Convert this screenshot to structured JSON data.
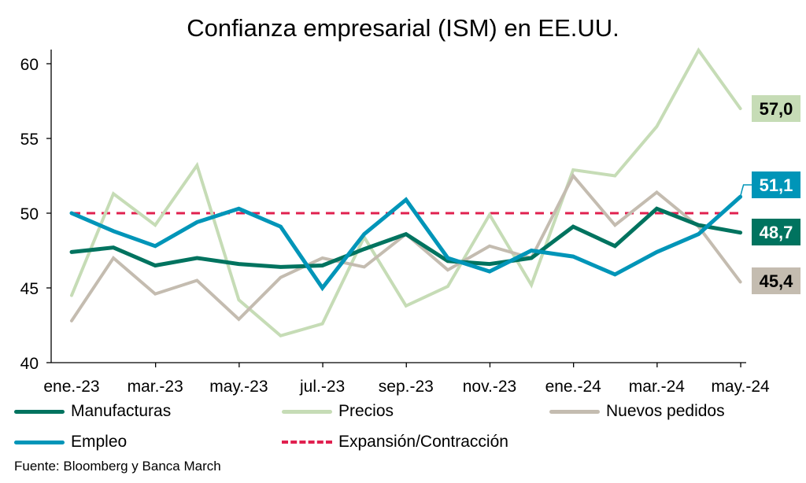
{
  "chart_data": {
    "type": "line",
    "title": "Confianza empresarial (ISM) en EE.UU.",
    "xlabel": "",
    "ylabel": "",
    "ylim": [
      40,
      60
    ],
    "yticks": [
      40,
      45,
      50,
      55,
      60
    ],
    "x": [
      "ene.-23",
      "feb.-23",
      "mar.-23",
      "abr.-23",
      "may.-23",
      "jun.-23",
      "jul.-23",
      "ago.-23",
      "sep.-23",
      "oct.-23",
      "nov.-23",
      "dic.-23",
      "ene.-24",
      "feb.-24",
      "mar.-24",
      "abr.-24",
      "may.-24"
    ],
    "xtick_labels": [
      "ene.-23",
      "mar.-23",
      "may.-23",
      "jul.-23",
      "sep.-23",
      "nov.-23",
      "ene.-24",
      "mar.-24",
      "may.-24"
    ],
    "grid": false,
    "legend_position": "bottom",
    "series": [
      {
        "name": "Manufacturas",
        "color": "#00735f",
        "width": 5,
        "values": [
          47.4,
          47.7,
          46.5,
          47.0,
          46.6,
          46.4,
          46.5,
          47.6,
          48.6,
          46.8,
          46.6,
          47.0,
          49.1,
          47.8,
          50.3,
          49.2,
          48.7
        ],
        "end_label": "48,7",
        "label_bg": "#00735f",
        "label_color": "#ffffff"
      },
      {
        "name": "Precios",
        "color": "#c6dcb6",
        "width": 4,
        "values": [
          44.5,
          51.3,
          49.2,
          53.2,
          44.2,
          41.8,
          42.6,
          48.4,
          43.8,
          45.1,
          49.9,
          45.2,
          52.9,
          52.5,
          55.8,
          60.9,
          57.0
        ],
        "end_label": "57,0",
        "label_bg": "#c6dcb6",
        "label_color": "#000000"
      },
      {
        "name": "Nuevos pedidos",
        "color": "#c4bcb0",
        "width": 4,
        "values": [
          42.8,
          47.0,
          44.6,
          45.5,
          42.9,
          45.7,
          47.0,
          46.4,
          48.6,
          46.2,
          47.8,
          47.0,
          52.5,
          49.2,
          51.4,
          49.1,
          45.4
        ],
        "end_label": "45,4",
        "label_bg": "#c4bcb0",
        "label_color": "#000000"
      },
      {
        "name": "Empleo",
        "color": "#0095b8",
        "width": 5,
        "values": [
          50.0,
          48.8,
          47.8,
          49.4,
          50.3,
          49.1,
          45.0,
          48.6,
          50.9,
          47.0,
          46.1,
          47.5,
          47.1,
          45.9,
          47.4,
          48.6,
          51.1
        ],
        "end_label": "51,1",
        "label_bg": "#0095b8",
        "label_color": "#ffffff"
      }
    ],
    "reference_line": {
      "name": "Expansión/Contracción",
      "value": 50,
      "color": "#e0204f",
      "style": "dashed"
    }
  },
  "legend": [
    {
      "label": "Manufacturas",
      "color": "#00735f"
    },
    {
      "label": "Precios",
      "color": "#c6dcb6"
    },
    {
      "label": "Nuevos pedidos",
      "color": "#c4bcb0"
    },
    {
      "label": "Empleo",
      "color": "#0095b8"
    },
    {
      "label": "Expansión/Contracción",
      "color": "#e0204f"
    }
  ],
  "source": "Fuente: Bloomberg y Banca March"
}
